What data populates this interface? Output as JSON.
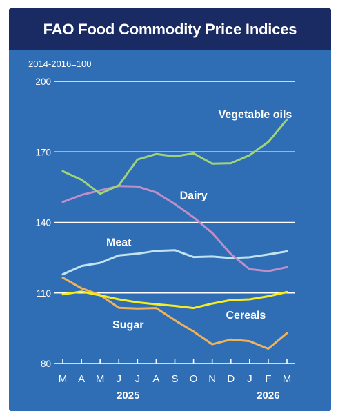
{
  "colors": {
    "panel": "#2f6db5",
    "header": "#1a2a63",
    "grid": "#ffffff",
    "text": "#ffffff",
    "vegetable_oils": "#9fd47b",
    "dairy": "#bd8fc9",
    "meat": "#bfe3ef",
    "cereals": "#f7ee1f",
    "sugar": "#f0b25a"
  },
  "chart_data": {
    "type": "line",
    "title": "FAO Food Commodity Price Indices",
    "subtitle": "2014-2016=100",
    "xlabel": "",
    "ylabel": "",
    "ylim": [
      80,
      200
    ],
    "yticks": [
      "80",
      "110",
      "140",
      "170",
      "200"
    ],
    "grid": true,
    "legend": "inline labels",
    "categories": [
      "M",
      "A",
      "M",
      "J",
      "J",
      "A",
      "S",
      "O",
      "N",
      "D",
      "J",
      "F",
      "M"
    ],
    "year_labels": [
      "2025",
      "2026"
    ],
    "series": [
      {
        "name": "Vegetable oils",
        "color_key": "vegetable_oils",
        "values": [
          161.8,
          158.2,
          152.2,
          155.8,
          166.8,
          169.1,
          168.1,
          169.4,
          165.0,
          165.2,
          168.6,
          174.2,
          183.8
        ]
      },
      {
        "name": "Dairy",
        "color_key": "dairy",
        "values": [
          148.7,
          151.7,
          153.6,
          155.5,
          155.3,
          152.8,
          147.8,
          142.2,
          135.5,
          126.5,
          120.1,
          119.3,
          121.0
        ]
      },
      {
        "name": "Meat",
        "color_key": "meat",
        "values": [
          117.9,
          121.5,
          122.8,
          126.0,
          126.7,
          127.9,
          128.2,
          125.3,
          125.5,
          124.9,
          125.2,
          126.4,
          127.7
        ]
      },
      {
        "name": "Cereals",
        "color_key": "cereals",
        "values": [
          109.4,
          110.6,
          109.0,
          107.3,
          106.0,
          105.2,
          104.5,
          103.6,
          105.5,
          107.0,
          107.3,
          108.6,
          110.4
        ]
      },
      {
        "name": "Sugar",
        "color_key": "sugar",
        "values": [
          116.5,
          112.0,
          109.1,
          103.7,
          103.4,
          103.6,
          98.4,
          93.6,
          88.2,
          90.2,
          89.5,
          86.3,
          92.9
        ]
      }
    ]
  }
}
